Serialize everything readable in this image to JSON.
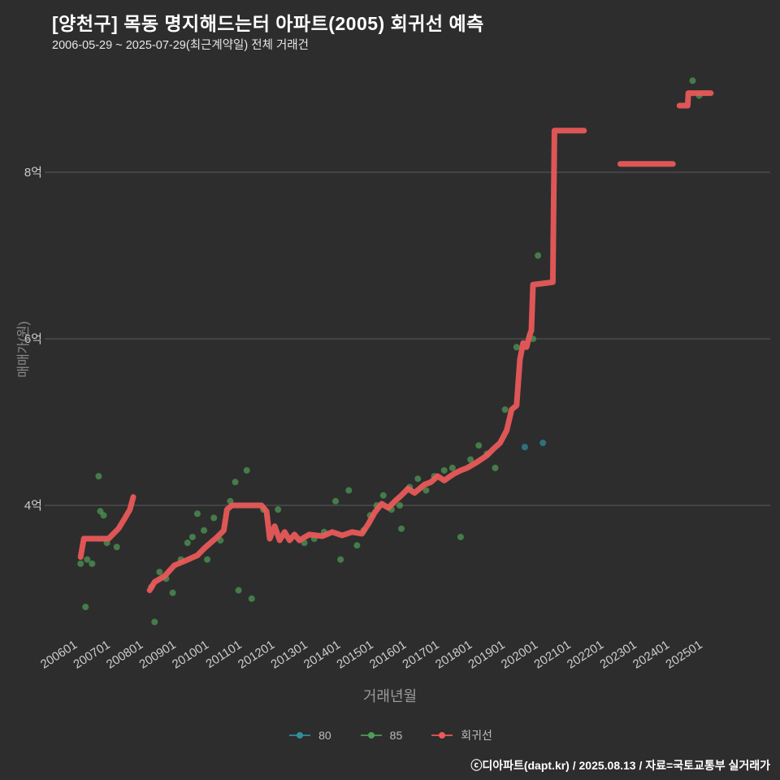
{
  "header": {
    "title": "[양천구] 목동 명지해드는터 아파트(2005) 회귀선 예측",
    "subtitle": "2006-05-29 ~ 2025-07-29(최근계약일) 전체 거래건"
  },
  "footer": {
    "credit": "ⓒ디아파트(dapt.kr) / 2025.08.13 / 자료=국토교통부 실거래가"
  },
  "colors": {
    "background": "#2d2d2d",
    "grid": "#5c5c5c",
    "tick_text": "#cccccc",
    "axis_title": "#8a8a8a",
    "series_80": "#2f8f9e",
    "series_85": "#4e9e57",
    "regression": "#ee5a5a",
    "title_text": "#ffffff"
  },
  "chart_data": {
    "type": "scatter",
    "title": "[양천구] 목동 명지해드는터 아파트(2005) 회귀선 예측",
    "subtitle": "2006-05-29 ~ 2025-07-29(최근계약일) 전체 거래건",
    "xlabel": "거래년월",
    "ylabel": "매매가(원)",
    "x_ticks": [
      "200601",
      "200701",
      "200801",
      "200901",
      "201001",
      "201101",
      "201201",
      "201301",
      "201401",
      "201501",
      "201601",
      "201701",
      "201801",
      "201901",
      "202001",
      "202101",
      "202201",
      "202301",
      "202401",
      "202501"
    ],
    "y_ticks": [
      {
        "label": "4억",
        "value": 4
      },
      {
        "label": "6억",
        "value": 6
      },
      {
        "label": "8억",
        "value": 8
      }
    ],
    "y_unit": "억원",
    "x_unit": "년(decimal year)",
    "legend": [
      {
        "label": "80",
        "color_key": "series_80"
      },
      {
        "label": "85",
        "color_key": "series_85"
      },
      {
        "label": "회귀선",
        "color_key": "regression"
      }
    ],
    "series": [
      {
        "name": "80",
        "type": "scatter",
        "points": [
          [
            2019.85,
            4.7
          ],
          [
            2020.4,
            4.75
          ]
        ]
      },
      {
        "name": "85",
        "type": "scatter",
        "points": [
          [
            2006.35,
            3.3
          ],
          [
            2006.5,
            2.78
          ],
          [
            2006.55,
            3.35
          ],
          [
            2006.7,
            3.3
          ],
          [
            2006.9,
            4.35
          ],
          [
            2006.95,
            3.93
          ],
          [
            2007.05,
            3.88
          ],
          [
            2007.15,
            3.55
          ],
          [
            2007.45,
            3.5
          ],
          [
            2008.5,
            3.02
          ],
          [
            2008.6,
            2.6
          ],
          [
            2008.75,
            3.2
          ],
          [
            2008.95,
            3.12
          ],
          [
            2009.15,
            2.95
          ],
          [
            2009.4,
            3.35
          ],
          [
            2009.6,
            3.55
          ],
          [
            2009.75,
            3.62
          ],
          [
            2009.9,
            3.9
          ],
          [
            2010.1,
            3.7
          ],
          [
            2010.2,
            3.35
          ],
          [
            2010.4,
            3.85
          ],
          [
            2010.6,
            3.58
          ],
          [
            2010.9,
            4.05
          ],
          [
            2011.05,
            4.28
          ],
          [
            2011.15,
            2.98
          ],
          [
            2011.4,
            4.42
          ],
          [
            2011.55,
            2.88
          ],
          [
            2011.9,
            3.95
          ],
          [
            2012.35,
            3.95
          ],
          [
            2013.15,
            3.55
          ],
          [
            2013.45,
            3.6
          ],
          [
            2013.75,
            3.68
          ],
          [
            2014.1,
            4.05
          ],
          [
            2014.25,
            3.35
          ],
          [
            2014.5,
            4.18
          ],
          [
            2014.75,
            3.52
          ],
          [
            2014.95,
            3.7
          ],
          [
            2015.15,
            3.88
          ],
          [
            2015.35,
            4.0
          ],
          [
            2015.55,
            4.12
          ],
          [
            2015.8,
            3.95
          ],
          [
            2016.05,
            4.0
          ],
          [
            2016.1,
            3.72
          ],
          [
            2016.35,
            4.22
          ],
          [
            2016.6,
            4.32
          ],
          [
            2016.85,
            4.18
          ],
          [
            2017.1,
            4.35
          ],
          [
            2017.4,
            4.42
          ],
          [
            2017.65,
            4.45
          ],
          [
            2017.9,
            3.62
          ],
          [
            2018.2,
            4.55
          ],
          [
            2018.45,
            4.72
          ],
          [
            2018.7,
            4.62
          ],
          [
            2018.95,
            4.45
          ],
          [
            2019.25,
            5.15
          ],
          [
            2019.6,
            5.9
          ],
          [
            2020.1,
            6.0
          ],
          [
            2020.25,
            7.0
          ],
          [
            2024.95,
            9.1
          ],
          [
            2025.15,
            8.92
          ]
        ]
      },
      {
        "name": "회귀선",
        "type": "line",
        "segments": [
          [
            [
              2006.35,
              3.38
            ],
            [
              2006.45,
              3.6
            ],
            [
              2007.2,
              3.6
            ],
            [
              2007.5,
              3.72
            ],
            [
              2007.7,
              3.85
            ],
            [
              2007.85,
              3.95
            ],
            [
              2007.95,
              4.1
            ]
          ],
          [
            [
              2008.45,
              2.98
            ],
            [
              2008.6,
              3.08
            ],
            [
              2008.9,
              3.15
            ],
            [
              2009.2,
              3.28
            ],
            [
              2009.5,
              3.33
            ],
            [
              2009.9,
              3.4
            ],
            [
              2010.1,
              3.48
            ],
            [
              2010.3,
              3.55
            ],
            [
              2010.5,
              3.62
            ],
            [
              2010.7,
              3.7
            ],
            [
              2010.8,
              3.95
            ],
            [
              2010.95,
              4.0
            ],
            [
              2011.85,
              4.0
            ],
            [
              2012.0,
              3.93
            ],
            [
              2012.1,
              3.6
            ],
            [
              2012.25,
              3.75
            ],
            [
              2012.4,
              3.58
            ],
            [
              2012.55,
              3.68
            ],
            [
              2012.7,
              3.58
            ],
            [
              2012.85,
              3.65
            ],
            [
              2013.0,
              3.58
            ],
            [
              2013.3,
              3.65
            ],
            [
              2013.7,
              3.63
            ],
            [
              2014.0,
              3.68
            ],
            [
              2014.3,
              3.64
            ],
            [
              2014.6,
              3.68
            ],
            [
              2014.9,
              3.66
            ],
            [
              2015.1,
              3.78
            ],
            [
              2015.3,
              3.92
            ],
            [
              2015.5,
              4.02
            ],
            [
              2015.7,
              3.97
            ],
            [
              2015.9,
              4.05
            ],
            [
              2016.1,
              4.12
            ],
            [
              2016.3,
              4.2
            ],
            [
              2016.5,
              4.15
            ],
            [
              2016.8,
              4.25
            ],
            [
              2017.0,
              4.28
            ],
            [
              2017.2,
              4.35
            ],
            [
              2017.4,
              4.3
            ],
            [
              2017.7,
              4.38
            ],
            [
              2017.9,
              4.42
            ],
            [
              2018.1,
              4.45
            ],
            [
              2018.4,
              4.52
            ],
            [
              2018.7,
              4.6
            ],
            [
              2018.9,
              4.68
            ],
            [
              2019.1,
              4.75
            ],
            [
              2019.3,
              4.9
            ],
            [
              2019.45,
              5.15
            ],
            [
              2019.6,
              5.2
            ],
            [
              2019.7,
              5.75
            ],
            [
              2019.8,
              5.95
            ],
            [
              2019.9,
              5.9
            ],
            [
              2020.0,
              6.05
            ],
            [
              2020.05,
              6.1
            ],
            [
              2020.1,
              6.65
            ],
            [
              2020.7,
              6.68
            ],
            [
              2020.75,
              8.5
            ],
            [
              2021.65,
              8.5
            ]
          ],
          [
            [
              2022.75,
              8.1
            ],
            [
              2024.35,
              8.1
            ]
          ],
          [
            [
              2024.55,
              8.8
            ],
            [
              2024.8,
              8.8
            ],
            [
              2024.82,
              8.95
            ],
            [
              2025.5,
              8.95
            ]
          ]
        ]
      }
    ]
  }
}
